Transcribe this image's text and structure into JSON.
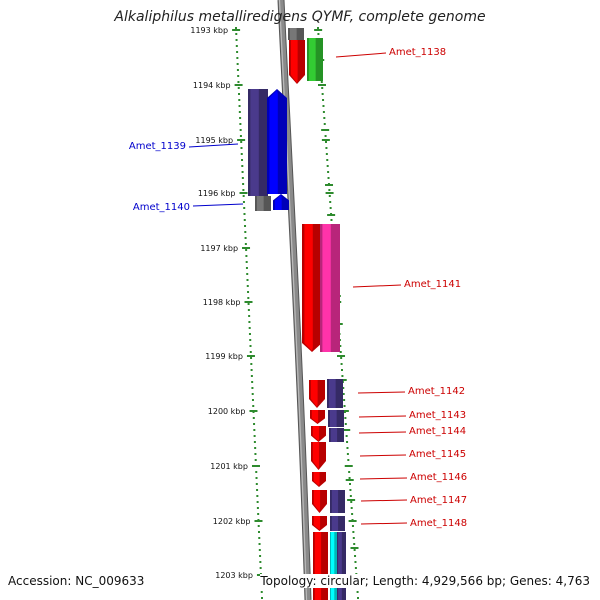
{
  "title": "Alkaliphilus metalliredigens QYMF, complete genome",
  "accession": "Accession: NC_009633",
  "topology": "Topology: circular; Length: 4,929,566 bp; Genes: 4,763",
  "colors": {
    "backbone": "#8a8a8a",
    "tick": "#2e8b2e",
    "label_red": "#cc0000",
    "label_blue": "#0000cc",
    "red": "#ff0000",
    "green": "#33cc33",
    "navy": "#4a3a8c",
    "blue": "#0000ff",
    "pink": "#ff33aa",
    "cyan": "#00ffff",
    "gray": "#777777"
  },
  "ticks": [
    {
      "label": "1193 kbp"
    },
    {
      "label": "1194 kbp"
    },
    {
      "label": "1195 kbp"
    },
    {
      "label": "1196 kbp"
    },
    {
      "label": "1197 kbp"
    },
    {
      "label": "1198 kbp"
    },
    {
      "label": "1199 kbp"
    },
    {
      "label": "1200 kbp"
    },
    {
      "label": "1201 kbp"
    },
    {
      "label": "1202 kbp"
    },
    {
      "label": "1203 kbp"
    }
  ],
  "genes": [
    {
      "name": "Amet_1138",
      "side": "right"
    },
    {
      "name": "Amet_1139",
      "side": "left"
    },
    {
      "name": "Amet_1140",
      "side": "left"
    },
    {
      "name": "Amet_1141",
      "side": "right"
    },
    {
      "name": "Amet_1142",
      "side": "right"
    },
    {
      "name": "Amet_1143",
      "side": "right"
    },
    {
      "name": "Amet_1144",
      "side": "right"
    },
    {
      "name": "Amet_1145",
      "side": "right"
    },
    {
      "name": "Amet_1146",
      "side": "right"
    },
    {
      "name": "Amet_1147",
      "side": "right"
    },
    {
      "name": "Amet_1148",
      "side": "right"
    }
  ]
}
